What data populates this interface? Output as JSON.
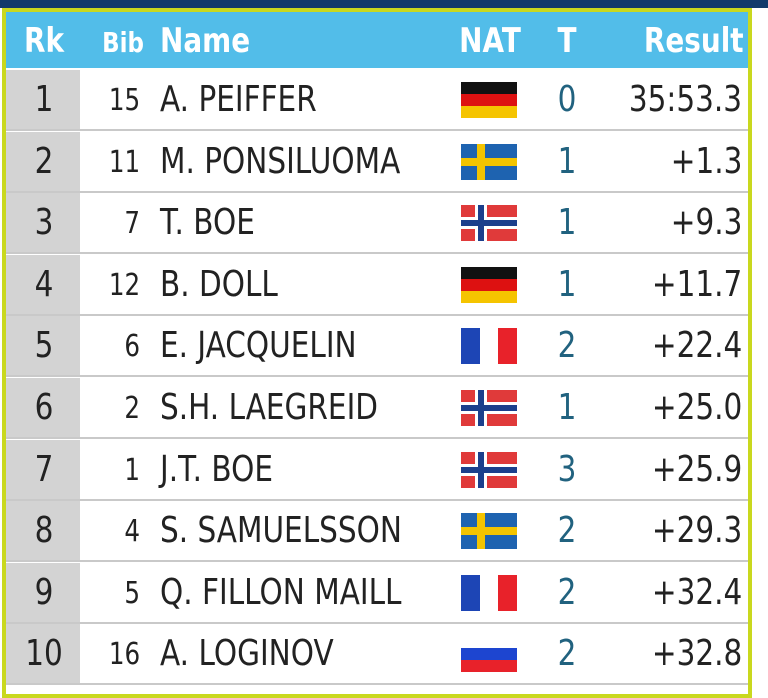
{
  "header": {
    "columns": [
      "Rk",
      "Bib",
      "Name",
      "NAT",
      "T",
      "Result"
    ]
  },
  "rows": [
    {
      "rank": 1,
      "bib": 15,
      "name": "A. PEIFFER",
      "t": 0,
      "result": "35:53.3"
    },
    {
      "rank": 2,
      "bib": 11,
      "name": "M. PONSILUOMA",
      "t": 1,
      "result": "+1.3"
    },
    {
      "rank": 3,
      "bib": 7,
      "name": "T. BOE",
      "t": 1,
      "result": "+9.3"
    },
    {
      "rank": 4,
      "bib": 12,
      "name": "B. DOLL",
      "t": 1,
      "result": "+11.7"
    },
    {
      "rank": 5,
      "bib": 6,
      "name": "E. JACQUELIN",
      "t": 2,
      "result": "+22.4"
    },
    {
      "rank": 6,
      "bib": 2,
      "name": "S.H. LAEGREID",
      "t": 1,
      "result": "+25.0"
    },
    {
      "rank": 7,
      "bib": 1,
      "name": "J.T. BOE",
      "t": 3,
      "result": "+25.9"
    },
    {
      "rank": 8,
      "bib": 4,
      "name": "S. SAMUELSSON",
      "t": 2,
      "result": "+29.3"
    },
    {
      "rank": 9,
      "bib": 5,
      "name": "Q. FILLON MAILL",
      "t": 2,
      "result": "+32.4"
    },
    {
      "rank": 10,
      "bib": 16,
      "name": "A. LOGINOV",
      "t": 2,
      "result": "+32.8"
    }
  ]
}
